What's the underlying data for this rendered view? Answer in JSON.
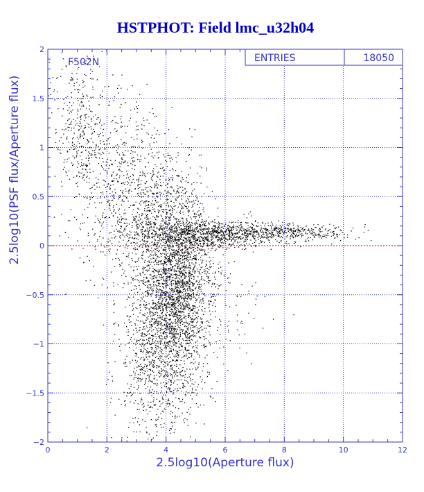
{
  "title": "HSTPHOT: Field lmc_u32h04",
  "stats_box": {
    "label": "ENTRIES",
    "value": "18050"
  },
  "filter_label": "F502N",
  "colors": {
    "frame": "#3333cc",
    "grid": "#3333cc",
    "points": "#000000",
    "zero_line": "#cc0000",
    "title": "#0000cc"
  },
  "chart_data": {
    "type": "scatter",
    "title": "HSTPHOT: Field lmc_u32h04",
    "xlabel": "2.5log10(Aperture flux)",
    "ylabel": "2.5log10(PSF flux/Aperture flux)",
    "xlim": [
      0,
      12
    ],
    "ylim": [
      -2,
      2
    ],
    "x_ticks": [
      0,
      2,
      4,
      6,
      8,
      10,
      12
    ],
    "y_ticks": [
      -2,
      -1.5,
      -1,
      -0.5,
      0,
      0.5,
      1,
      1.5,
      2
    ],
    "x_tick_labels": [
      "0",
      "2",
      "4",
      "6",
      "8",
      "10",
      "12"
    ],
    "y_tick_labels": [
      "−2",
      "−1.5",
      "−1",
      "−0.5",
      "0",
      "0.5",
      "1",
      "1.5",
      "2"
    ],
    "grid": true,
    "reference_line_y": 0,
    "entries": 18050,
    "point_density": [
      {
        "x": 1.0,
        "y": 1.2,
        "sx": 0.5,
        "sy": 0.45,
        "weight": 0.05
      },
      {
        "x": 2.0,
        "y": 0.8,
        "sx": 0.7,
        "sy": 0.5,
        "weight": 0.07
      },
      {
        "x": 3.3,
        "y": 0.35,
        "sx": 0.8,
        "sy": 0.4,
        "weight": 0.12
      },
      {
        "x": 4.3,
        "y": -0.3,
        "sx": 0.55,
        "sy": 0.45,
        "weight": 0.3
      },
      {
        "x": 3.9,
        "y": -0.9,
        "sx": 0.7,
        "sy": 0.4,
        "weight": 0.14
      },
      {
        "x": 3.8,
        "y": -1.4,
        "sx": 0.75,
        "sy": 0.3,
        "weight": 0.06
      },
      {
        "x": 5.5,
        "y": 0.12,
        "sx": 1.1,
        "sy": 0.07,
        "weight": 0.15
      },
      {
        "x": 8.2,
        "y": 0.14,
        "sx": 1.0,
        "sy": 0.04,
        "weight": 0.06
      },
      {
        "x": 5.0,
        "y": -0.5,
        "sx": 1.0,
        "sy": 0.35,
        "weight": 0.05
      }
    ]
  }
}
